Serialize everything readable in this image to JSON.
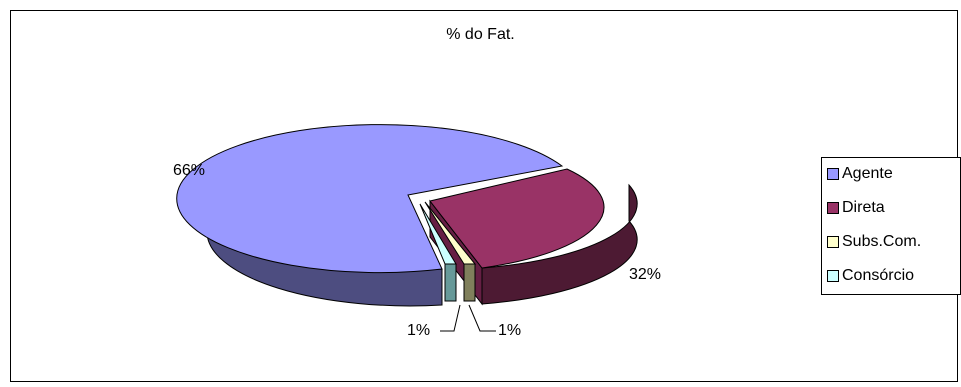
{
  "chart_data": {
    "type": "pie",
    "title": "% do Fat.",
    "categories": [
      "Agente",
      "Direta",
      "Subs.Com.",
      "Consórcio"
    ],
    "values": [
      66,
      32,
      1,
      1
    ],
    "data_labels": [
      "66%",
      "32%",
      "1%",
      "1%"
    ],
    "colors": [
      "#9999ff",
      "#993366",
      "#ffffcc",
      "#ccffff"
    ],
    "legend_position": "right",
    "style": "3d-exploded"
  }
}
